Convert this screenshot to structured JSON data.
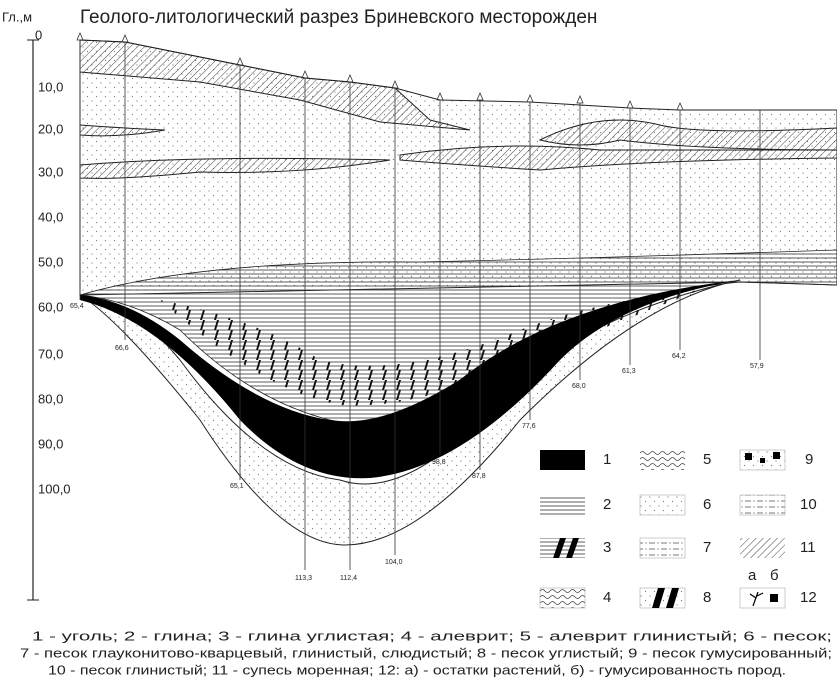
{
  "header": {
    "title": "Геолого-литологический разрез Бриневского месторожден"
  },
  "axis": {
    "label": "Гл.,м",
    "ticks": [
      "0",
      "10,0",
      "20,0",
      "30,0",
      "40,0",
      "50,0",
      "60,0",
      "70,0",
      "80,0",
      "90,0",
      "100,0"
    ]
  },
  "boreholes": [
    "65,4",
    "66,6",
    "65,1",
    "113,3",
    "112,4",
    "104,0",
    "98,8",
    "87,8",
    "77,6",
    "68,0",
    "61,3",
    "64,2",
    "57,9"
  ],
  "legend": {
    "items": [
      "1",
      "2",
      "3",
      "4",
      "5",
      "6",
      "7",
      "8",
      "9",
      "10",
      "11",
      "12"
    ],
    "sub_labels": [
      "а",
      "б"
    ]
  },
  "caption": [
    "1 - уголь; 2 - глина; 3 - глина углистая; 4 - алеврит; 5 - алеврит глинистый; 6 - песок;",
    "7 - песок глауконитово-кварцевый, глинистый, слюдистый; 8 - песок углистый; 9 - песок гумусированный;",
    "10 - песок глинистый; 11 - супесь моренная; 12: а) - остатки растений, б) - гумусированность пород."
  ]
}
